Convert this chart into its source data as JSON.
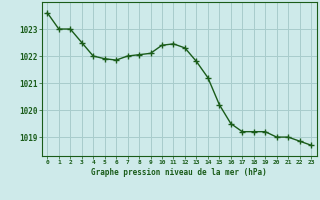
{
  "x": [
    0,
    1,
    2,
    3,
    4,
    5,
    6,
    7,
    8,
    9,
    10,
    11,
    12,
    13,
    14,
    15,
    16,
    17,
    18,
    19,
    20,
    21,
    22,
    23
  ],
  "y": [
    1023.6,
    1023.0,
    1023.0,
    1022.5,
    1022.0,
    1021.9,
    1021.85,
    1022.0,
    1022.05,
    1022.1,
    1022.4,
    1022.45,
    1022.3,
    1021.8,
    1021.2,
    1020.2,
    1019.5,
    1019.2,
    1019.2,
    1019.2,
    1019.0,
    1019.0,
    1018.85,
    1018.7
  ],
  "bg_color": "#ceeaea",
  "line_color": "#1a5c1a",
  "marker_color": "#1a5c1a",
  "grid_color": "#a8cccc",
  "axis_color": "#1a5c1a",
  "xlabel": "Graphe pression niveau de la mer (hPa)",
  "xlabel_color": "#1a5c1a",
  "tick_color": "#1a5c1a",
  "yticks": [
    1019,
    1020,
    1021,
    1022,
    1023
  ],
  "xtick_labels": [
    "0",
    "1",
    "2",
    "3",
    "4",
    "5",
    "6",
    "7",
    "8",
    "9",
    "10",
    "11",
    "12",
    "13",
    "14",
    "15",
    "16",
    "17",
    "18",
    "19",
    "20",
    "21",
    "22",
    "23"
  ],
  "ylim": [
    1018.3,
    1024.0
  ],
  "xlim": [
    -0.5,
    23.5
  ]
}
